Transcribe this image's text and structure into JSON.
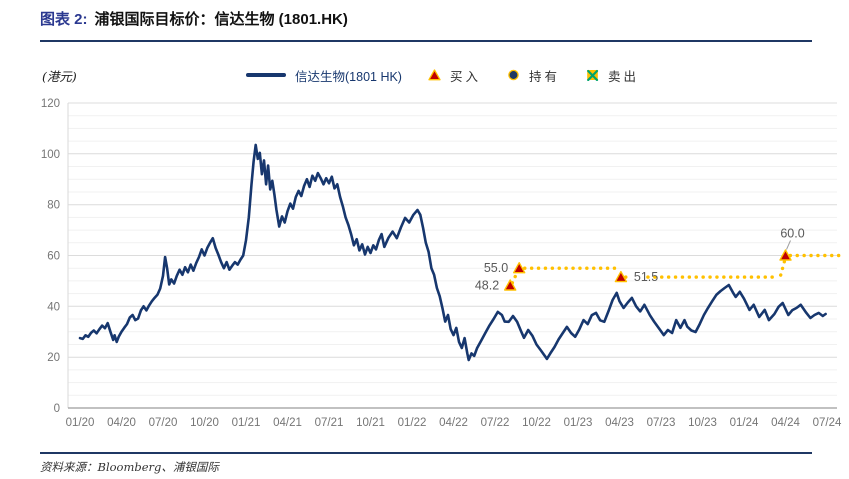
{
  "title": {
    "prefix": "图表 2:",
    "main": "浦银国际目标价：信达生物 (1801.HK)"
  },
  "unit_label": "(港元)",
  "legend": [
    {
      "label": "信达生物(1801 HK)",
      "marker": "line"
    },
    {
      "label": "买入",
      "marker": "buy-triangle"
    },
    {
      "label": "持有",
      "marker": "hold-circle"
    },
    {
      "label": "卖出",
      "marker": "sell-x"
    }
  ],
  "source": "资料来源：Bloomberg、浦银国际",
  "colors": {
    "line": "#17376E",
    "target_dots": "#FFC000",
    "buy_marker": "#C00000",
    "hold_marker": "#1F3864",
    "sell_x": "#00A36C",
    "title_accent": "#2B3990",
    "rule": "#1F3864"
  },
  "chart_data": {
    "type": "line",
    "title": "浦银国际目标价：信达生物 (1801.HK)",
    "ylabel": "(港元)",
    "ylim": [
      0,
      120
    ],
    "y_ticks": [
      0,
      20,
      40,
      60,
      80,
      100,
      120
    ],
    "grid": "horizontal, minor every 5, major every 20",
    "legend_position": "top",
    "x_tick_labels": [
      "01/20",
      "04/20",
      "07/20",
      "10/20",
      "01/21",
      "04/21",
      "07/21",
      "10/21",
      "01/22",
      "04/22",
      "07/22",
      "10/22",
      "01/23",
      "04/23",
      "07/23",
      "10/23",
      "01/24",
      "04/24",
      "07/24"
    ],
    "x_unit": "months since 2020-01",
    "series": [
      {
        "name": "信达生物(1801 HK)",
        "points": [
          [
            0,
            27.5
          ],
          [
            0.2,
            27.2
          ],
          [
            0.4,
            28.6
          ],
          [
            0.6,
            28.0
          ],
          [
            0.8,
            29.6
          ],
          [
            1.0,
            30.5
          ],
          [
            1.2,
            29.4
          ],
          [
            1.4,
            31.0
          ],
          [
            1.6,
            32.4
          ],
          [
            1.8,
            31.4
          ],
          [
            2.0,
            33.4
          ],
          [
            2.2,
            30.0
          ],
          [
            2.4,
            26.8
          ],
          [
            2.5,
            28.6
          ],
          [
            2.65,
            26.0
          ],
          [
            2.8,
            28.0
          ],
          [
            3.0,
            30.0
          ],
          [
            3.2,
            31.6
          ],
          [
            3.4,
            33.0
          ],
          [
            3.6,
            35.6
          ],
          [
            3.8,
            36.6
          ],
          [
            4.0,
            34.6
          ],
          [
            4.2,
            35.2
          ],
          [
            4.4,
            38.4
          ],
          [
            4.6,
            40.0
          ],
          [
            4.8,
            38.4
          ],
          [
            5.0,
            40.4
          ],
          [
            5.2,
            42.0
          ],
          [
            5.4,
            43.4
          ],
          [
            5.6,
            44.6
          ],
          [
            5.8,
            47.0
          ],
          [
            6.0,
            52.0
          ],
          [
            6.15,
            59.4
          ],
          [
            6.3,
            55.0
          ],
          [
            6.45,
            48.6
          ],
          [
            6.6,
            50.6
          ],
          [
            6.8,
            49.0
          ],
          [
            7.0,
            52.0
          ],
          [
            7.2,
            54.4
          ],
          [
            7.4,
            52.4
          ],
          [
            7.6,
            55.4
          ],
          [
            7.8,
            53.4
          ],
          [
            8.0,
            56.4
          ],
          [
            8.2,
            54.0
          ],
          [
            8.4,
            57.0
          ],
          [
            8.6,
            59.4
          ],
          [
            8.8,
            62.4
          ],
          [
            9.0,
            60.0
          ],
          [
            9.2,
            63.0
          ],
          [
            9.4,
            65.0
          ],
          [
            9.6,
            66.8
          ],
          [
            9.8,
            63.0
          ],
          [
            10.0,
            60.4
          ],
          [
            10.2,
            57.4
          ],
          [
            10.4,
            55.0
          ],
          [
            10.6,
            57.4
          ],
          [
            10.8,
            54.4
          ],
          [
            11.0,
            56.0
          ],
          [
            11.2,
            57.4
          ],
          [
            11.4,
            56.4
          ],
          [
            11.6,
            58.4
          ],
          [
            11.8,
            60.0
          ],
          [
            12.0,
            66.0
          ],
          [
            12.2,
            75.0
          ],
          [
            12.4,
            88.0
          ],
          [
            12.55,
            97.0
          ],
          [
            12.7,
            103.5
          ],
          [
            12.85,
            98.0
          ],
          [
            13.0,
            100.4
          ],
          [
            13.15,
            92.0
          ],
          [
            13.3,
            97.4
          ],
          [
            13.45,
            88.0
          ],
          [
            13.6,
            95.4
          ],
          [
            13.75,
            86.0
          ],
          [
            13.9,
            89.4
          ],
          [
            14.05,
            84.0
          ],
          [
            14.2,
            78.0
          ],
          [
            14.4,
            71.4
          ],
          [
            14.6,
            75.4
          ],
          [
            14.8,
            73.0
          ],
          [
            15.0,
            77.4
          ],
          [
            15.2,
            80.4
          ],
          [
            15.4,
            78.4
          ],
          [
            15.6,
            83.0
          ],
          [
            15.8,
            85.4
          ],
          [
            16.0,
            83.4
          ],
          [
            16.2,
            87.4
          ],
          [
            16.4,
            90.0
          ],
          [
            16.6,
            87.0
          ],
          [
            16.8,
            91.4
          ],
          [
            17.0,
            89.4
          ],
          [
            17.2,
            92.4
          ],
          [
            17.4,
            90.4
          ],
          [
            17.6,
            88.0
          ],
          [
            17.8,
            90.4
          ],
          [
            18.0,
            88.4
          ],
          [
            18.2,
            91.0
          ],
          [
            18.4,
            86.4
          ],
          [
            18.6,
            88.0
          ],
          [
            18.8,
            83.0
          ],
          [
            19.0,
            79.4
          ],
          [
            19.2,
            75.0
          ],
          [
            19.4,
            72.0
          ],
          [
            19.6,
            68.4
          ],
          [
            19.8,
            64.0
          ],
          [
            20.0,
            66.4
          ],
          [
            20.2,
            62.0
          ],
          [
            20.4,
            64.4
          ],
          [
            20.6,
            60.4
          ],
          [
            20.8,
            63.4
          ],
          [
            21.0,
            61.0
          ],
          [
            21.2,
            64.0
          ],
          [
            21.4,
            62.4
          ],
          [
            21.6,
            66.0
          ],
          [
            21.8,
            68.4
          ],
          [
            22.0,
            63.4
          ],
          [
            22.3,
            67.0
          ],
          [
            22.6,
            69.4
          ],
          [
            22.9,
            66.8
          ],
          [
            23.2,
            71.0
          ],
          [
            23.5,
            74.8
          ],
          [
            23.8,
            73.0
          ],
          [
            24.1,
            76.0
          ],
          [
            24.4,
            77.9
          ],
          [
            24.6,
            76.0
          ],
          [
            24.8,
            70.8
          ],
          [
            25.0,
            65.0
          ],
          [
            25.2,
            61.4
          ],
          [
            25.4,
            55.0
          ],
          [
            25.6,
            52.4
          ],
          [
            25.8,
            47.2
          ],
          [
            26.0,
            44.0
          ],
          [
            26.2,
            39.4
          ],
          [
            26.4,
            34.0
          ],
          [
            26.6,
            36.6
          ],
          [
            26.8,
            31.0
          ],
          [
            27.0,
            28.7
          ],
          [
            27.2,
            31.5
          ],
          [
            27.4,
            26.0
          ],
          [
            27.6,
            23.6
          ],
          [
            27.8,
            27.5
          ],
          [
            28.0,
            21.5
          ],
          [
            28.1,
            18.9
          ],
          [
            28.3,
            21.5
          ],
          [
            28.5,
            20.5
          ],
          [
            28.7,
            23.5
          ],
          [
            29.0,
            26.5
          ],
          [
            29.3,
            29.5
          ],
          [
            29.6,
            32.5
          ],
          [
            29.9,
            35.0
          ],
          [
            30.2,
            37.8
          ],
          [
            30.5,
            36.6
          ],
          [
            30.7,
            34.0
          ],
          [
            31.0,
            33.9
          ],
          [
            31.3,
            36.2
          ],
          [
            31.6,
            33.9
          ],
          [
            31.9,
            30.0
          ],
          [
            32.1,
            27.6
          ],
          [
            32.4,
            30.7
          ],
          [
            32.7,
            28.5
          ],
          [
            33.0,
            25.0
          ],
          [
            33.3,
            22.8
          ],
          [
            33.6,
            20.5
          ],
          [
            33.75,
            19.3
          ],
          [
            34.0,
            21.5
          ],
          [
            34.3,
            24.0
          ],
          [
            34.6,
            27.0
          ],
          [
            34.9,
            29.5
          ],
          [
            35.2,
            31.9
          ],
          [
            35.5,
            29.5
          ],
          [
            35.8,
            28.0
          ],
          [
            36.1,
            31.0
          ],
          [
            36.4,
            34.6
          ],
          [
            36.7,
            33.0
          ],
          [
            37.0,
            36.5
          ],
          [
            37.3,
            37.4
          ],
          [
            37.6,
            34.5
          ],
          [
            37.9,
            33.9
          ],
          [
            38.2,
            38.0
          ],
          [
            38.5,
            42.5
          ],
          [
            38.8,
            45.3
          ],
          [
            39.0,
            42.0
          ],
          [
            39.3,
            39.4
          ],
          [
            39.6,
            41.5
          ],
          [
            39.9,
            43.3
          ],
          [
            40.2,
            40.0
          ],
          [
            40.5,
            38.0
          ],
          [
            40.8,
            40.6
          ],
          [
            41.2,
            36.5
          ],
          [
            41.5,
            34.0
          ],
          [
            41.9,
            31.0
          ],
          [
            42.2,
            28.7
          ],
          [
            42.5,
            30.7
          ],
          [
            42.8,
            29.5
          ],
          [
            43.1,
            34.6
          ],
          [
            43.4,
            31.5
          ],
          [
            43.7,
            34.6
          ],
          [
            43.9,
            32.0
          ],
          [
            44.2,
            30.5
          ],
          [
            44.5,
            29.9
          ],
          [
            44.8,
            33.0
          ],
          [
            45.1,
            36.6
          ],
          [
            45.4,
            39.4
          ],
          [
            45.7,
            42.0
          ],
          [
            46.0,
            44.5
          ],
          [
            46.3,
            46.0
          ],
          [
            46.6,
            47.2
          ],
          [
            46.9,
            48.4
          ],
          [
            47.2,
            45.5
          ],
          [
            47.4,
            43.7
          ],
          [
            47.7,
            45.7
          ],
          [
            48.0,
            43.0
          ],
          [
            48.4,
            38.6
          ],
          [
            48.7,
            40.6
          ],
          [
            49.1,
            35.8
          ],
          [
            49.5,
            38.6
          ],
          [
            49.8,
            34.6
          ],
          [
            50.2,
            37.0
          ],
          [
            50.5,
            39.8
          ],
          [
            50.8,
            41.3
          ],
          [
            51.2,
            36.6
          ],
          [
            51.5,
            38.5
          ],
          [
            51.8,
            39.4
          ],
          [
            52.1,
            40.6
          ],
          [
            52.5,
            37.5
          ],
          [
            52.8,
            35.4
          ],
          [
            53.1,
            36.6
          ],
          [
            53.4,
            37.4
          ],
          [
            53.7,
            36.2
          ],
          [
            53.9,
            37.0
          ]
        ]
      }
    ],
    "target_price_events": [
      {
        "label": "48.2",
        "month": 31.1,
        "value": 48.2,
        "action": "买入",
        "label_side": "left"
      },
      {
        "label": "55.0",
        "month": 31.75,
        "value": 55.0,
        "action": "买入",
        "label_side": "left"
      },
      {
        "label": "51.5",
        "month": 39.1,
        "value": 51.5,
        "action": "买入",
        "label_side": "right"
      },
      {
        "label": "60.0",
        "month": 51.0,
        "value": 60.0,
        "action": "买入",
        "label_side": "above"
      }
    ],
    "dotted_segments": [
      {
        "from": [
          31.25,
          49.2
        ],
        "to": [
          31.62,
          53.6
        ]
      },
      {
        "from": [
          32.15,
          55.0
        ],
        "to": [
          38.65,
          55.0
        ]
      },
      {
        "from": [
          39.45,
          51.5
        ],
        "to": [
          39.75,
          51.5
        ]
      },
      {
        "from": [
          41.05,
          51.5
        ],
        "to": [
          50.5,
          51.5
        ]
      },
      {
        "from": [
          50.65,
          52.3
        ],
        "to": [
          50.95,
          58.2
        ]
      },
      {
        "from": [
          51.35,
          60.0
        ],
        "to": [
          55.1,
          60.0
        ]
      }
    ]
  }
}
